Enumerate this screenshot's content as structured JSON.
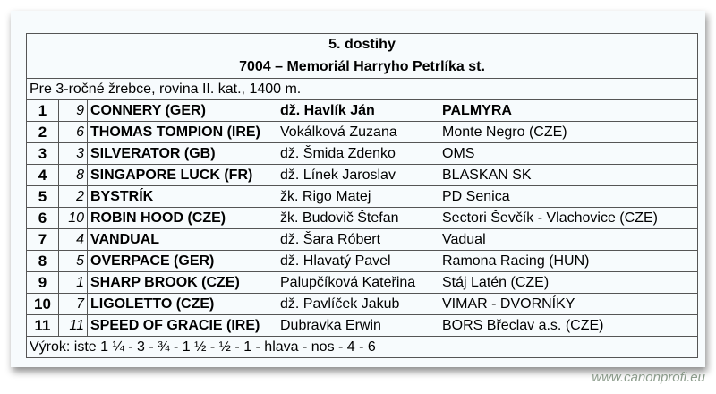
{
  "race": {
    "title": "5. dostihy",
    "subtitle": "7004 – Memoriál Harryho Petrlíka st.",
    "description": "Pre 3-ročné žrebce, rovina II. kat., 1400 m.",
    "results": [
      {
        "pos": "1",
        "num": "9",
        "horse": "CONNERY (GER)",
        "jockey": "dž. Havlík Ján",
        "owner": "PALMYRA"
      },
      {
        "pos": "2",
        "num": "6",
        "horse": "THOMAS TOMPION (IRE)",
        "jockey": "Vokálková Zuzana",
        "owner": "Monte Negro (CZE)"
      },
      {
        "pos": "3",
        "num": "3",
        "horse": "SILVERATOR (GB)",
        "jockey": "dž. Šmida Zdenko",
        "owner": "OMS"
      },
      {
        "pos": "4",
        "num": "8",
        "horse": "SINGAPORE LUCK (FR)",
        "jockey": "dž. Línek Jaroslav",
        "owner": "BLASKAN SK"
      },
      {
        "pos": "5",
        "num": "2",
        "horse": "BYSTRÍK",
        "jockey": "žk. Rigo Matej",
        "owner": "PD Senica"
      },
      {
        "pos": "6",
        "num": "10",
        "horse": "ROBIN HOOD (CZE)",
        "jockey": "žk. Budovič Štefan",
        "owner": "Sectori Ševčík - Vlachovice (CZE)"
      },
      {
        "pos": "7",
        "num": "4",
        "horse": "VANDUAL",
        "jockey": "dž. Šara Róbert",
        "owner": "Vadual"
      },
      {
        "pos": "8",
        "num": "5",
        "horse": "OVERPACE (GER)",
        "jockey": "dž. Hlavatý Pavel",
        "owner": "Ramona Racing (HUN)"
      },
      {
        "pos": "9",
        "num": "1",
        "horse": "SHARP BROOK (CZE)",
        "jockey": "Palupčíková Kateřina",
        "owner": "Stáj Latén (CZE)"
      },
      {
        "pos": "10",
        "num": "7",
        "horse": "LIGOLETTO (CZE)",
        "jockey": "dž. Pavlíček Jakub",
        "owner": "VIMAR - DVORNÍKY"
      },
      {
        "pos": "11",
        "num": "11",
        "horse": "SPEED OF GRACIE (IRE)",
        "jockey": "Dubravka Erwin",
        "owner": "BORS Břeclav a.s. (CZE)"
      }
    ],
    "margins": "Výrok: iste 1 ¼ - 3 - ¾ - 1 ½ - ½ - 1 - hlava - nos - 4 - 6"
  },
  "watermark": "www.canonprofi.eu"
}
